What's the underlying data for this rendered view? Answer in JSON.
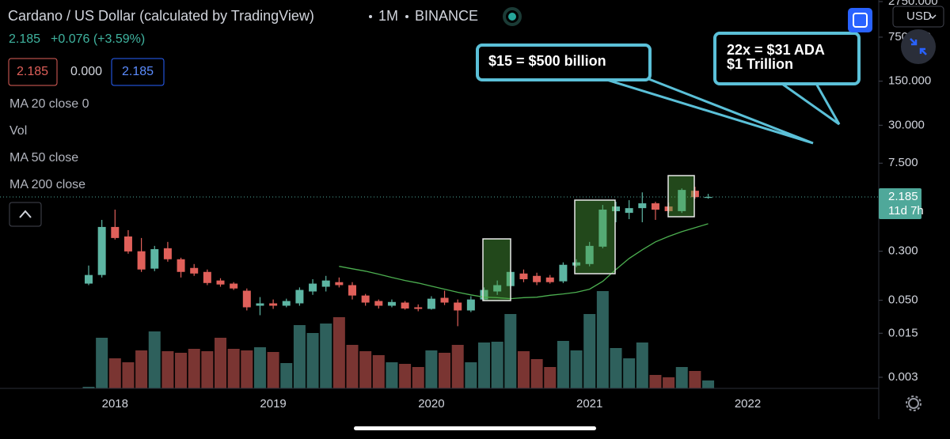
{
  "header": {
    "symbol": "Cardano / US Dollar (calculated by TradingView)",
    "interval": "1M",
    "exchange": "BINANCE",
    "last": "2.185",
    "change": "+0.076 (+3.59%)",
    "sell": "2.185",
    "spread": "0.000",
    "buy": "2.185",
    "currency": "USD"
  },
  "indicators": [
    "Vol",
    "MA 50 close",
    "MA 200 close"
  ],
  "annotations": [
    {
      "lines": [
        "$15 = $500 billion"
      ]
    },
    {
      "lines": [
        "22x = $31 ADA",
        "$1 Trillion"
      ]
    }
  ],
  "chart_data": {
    "type": "candlestick",
    "log_scale": true,
    "categories": [
      null,
      null,
      "2018",
      null,
      null,
      null,
      null,
      null,
      null,
      null,
      null,
      null,
      null,
      null,
      "2019",
      null,
      null,
      null,
      null,
      null,
      null,
      null,
      null,
      null,
      null,
      null,
      "2020",
      null,
      null,
      null,
      null,
      null,
      null,
      null,
      null,
      null,
      null,
      null,
      "2021",
      null,
      null,
      null,
      null,
      null,
      null,
      null,
      null,
      null,
      null,
      null,
      "2022"
    ],
    "open": [
      0.092,
      0.126,
      0.729,
      0.515,
      0.3,
      0.159,
      0.335,
      0.224,
      0.163,
      0.141,
      0.103,
      0.092,
      0.071,
      0.041,
      0.0447,
      0.041,
      0.0447,
      0.069,
      0.082,
      0.097,
      0.087,
      0.0595,
      0.0487,
      0.041,
      0.046,
      0.0387,
      0.0365,
      0.0547,
      0.046,
      0.0345,
      0.0515,
      0.069,
      0.084,
      0.133,
      0.122,
      0.115,
      0.1,
      0.178,
      0.188,
      0.355,
      1.296,
      1.22,
      1.45,
      1.73,
      1.54,
      1.3,
      2.74,
      2.109,
      null,
      null,
      null
    ],
    "high": [
      0.178,
      0.944,
      1.373,
      0.649,
      0.487,
      0.365,
      0.422,
      0.237,
      0.188,
      0.154,
      0.112,
      0.097,
      0.077,
      0.0562,
      0.0515,
      0.053,
      0.08,
      0.108,
      0.122,
      0.115,
      0.097,
      0.063,
      0.0515,
      0.0515,
      0.0487,
      0.043,
      0.058,
      0.071,
      0.0515,
      0.058,
      0.08,
      0.103,
      0.154,
      0.154,
      0.137,
      0.126,
      0.2,
      0.224,
      0.422,
      1.63,
      1.83,
      1.94,
      2.58,
      1.83,
      1.78,
      2.98,
      3.16,
      2.44,
      null,
      null,
      null
    ],
    "low": [
      0.087,
      0.115,
      0.46,
      0.274,
      0.141,
      0.145,
      0.205,
      0.115,
      0.122,
      0.087,
      0.082,
      0.073,
      0.0345,
      0.029,
      0.0365,
      0.0387,
      0.041,
      0.061,
      0.069,
      0.08,
      0.0515,
      0.041,
      0.037,
      0.0387,
      0.0355,
      0.0335,
      0.0355,
      0.042,
      0.0194,
      0.0325,
      0.0487,
      0.061,
      0.077,
      0.097,
      0.087,
      0.092,
      0.094,
      0.168,
      0.173,
      0.335,
      0.866,
      0.97,
      0.866,
      0.944,
      1.22,
      1.22,
      2.05,
      2.05,
      null,
      null,
      null
    ],
    "close": [
      0.126,
      0.729,
      0.487,
      0.298,
      0.154,
      0.324,
      0.224,
      0.141,
      0.133,
      0.094,
      0.089,
      0.077,
      0.0387,
      0.0447,
      0.041,
      0.0487,
      0.073,
      0.092,
      0.103,
      0.087,
      0.0595,
      0.046,
      0.041,
      0.047,
      0.037,
      0.0365,
      0.053,
      0.046,
      0.0345,
      0.0515,
      0.073,
      0.087,
      0.141,
      0.108,
      0.097,
      0.097,
      0.183,
      0.2,
      0.365,
      1.373,
      1.54,
      1.45,
      1.73,
      1.37,
      1.3,
      2.82,
      2.17,
      2.185,
      null,
      null,
      null
    ],
    "up_color": "#5db5a3",
    "down_color": "#e0605a",
    "volume": {
      "name": "Vol",
      "values": [
        2,
        64,
        38,
        33,
        48,
        72,
        47,
        45,
        50,
        47,
        64,
        50,
        48,
        52,
        46,
        32,
        80,
        70,
        82,
        90,
        55,
        47,
        42,
        33,
        31,
        27,
        48,
        45,
        55,
        33,
        58,
        59,
        94,
        47,
        37,
        27,
        60,
        48,
        94,
        123,
        51,
        38,
        58,
        17,
        14,
        27,
        22,
        10,
        null,
        null,
        null
      ],
      "up_color": "#2e605c",
      "down_color": "#7a3532"
    },
    "series": [
      {
        "name": "MA 20 close 0",
        "color": "#4caf50",
        "values": [
          null,
          null,
          null,
          null,
          null,
          null,
          null,
          null,
          null,
          null,
          null,
          null,
          null,
          null,
          null,
          null,
          null,
          null,
          null,
          0.173,
          0.158,
          0.145,
          0.13,
          0.115,
          0.103,
          0.094,
          0.084,
          0.075,
          0.067,
          0.061,
          0.056,
          0.055,
          0.053,
          0.055,
          0.056,
          0.06,
          0.063,
          0.067,
          0.075,
          0.1,
          0.154,
          0.23,
          0.316,
          0.422,
          0.515,
          0.614,
          0.708,
          0.82,
          null,
          null,
          null
        ]
      }
    ],
    "ylim": [
      0.002,
      2750
    ],
    "yticks": [
      {
        "value": 2750,
        "label": "2750.000"
      },
      {
        "value": 750,
        "label": "750.000"
      },
      {
        "value": 150,
        "label": "150.000"
      },
      {
        "value": 30,
        "label": "30.000"
      },
      {
        "value": 7.5,
        "label": "7.500"
      },
      {
        "value": 0.3,
        "label": "0.300"
      },
      {
        "value": 0.05,
        "label": "0.050"
      },
      0.015,
      0.003
    ],
    "last_price": 2.185,
    "last_price_color": "#4fa89a",
    "countdown": "11d 7h"
  }
}
